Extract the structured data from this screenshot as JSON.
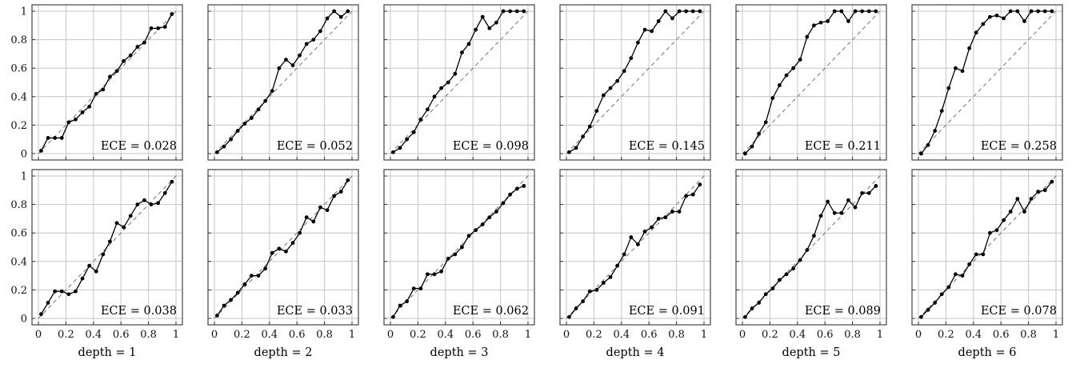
{
  "chart_data": {
    "type": "line",
    "axes": {
      "xlim": [
        0,
        1
      ],
      "ylim": [
        0,
        1
      ],
      "xticks": [
        "0",
        "0.2",
        "0.4",
        "0.6",
        "0.8",
        "1"
      ],
      "yticks": [
        "0",
        "0.2",
        "0.4",
        "0.6",
        "0.8",
        "1"
      ],
      "grid": true,
      "reference_line": "y = x (dashed)"
    },
    "columns": [
      {
        "label": "depth = 1"
      },
      {
        "label": "depth = 2"
      },
      {
        "label": "depth = 3"
      },
      {
        "label": "depth = 4"
      },
      {
        "label": "depth = 5"
      },
      {
        "label": "depth = 6"
      }
    ],
    "panels": [
      {
        "row": 0,
        "col": 0,
        "ece": "ECE = 0.028",
        "x": [
          0.02,
          0.07,
          0.12,
          0.17,
          0.22,
          0.27,
          0.32,
          0.37,
          0.42,
          0.47,
          0.52,
          0.57,
          0.62,
          0.67,
          0.72,
          0.77,
          0.82,
          0.87,
          0.92,
          0.97
        ],
        "y": [
          0.02,
          0.11,
          0.11,
          0.11,
          0.22,
          0.24,
          0.29,
          0.33,
          0.42,
          0.45,
          0.54,
          0.58,
          0.65,
          0.69,
          0.75,
          0.78,
          0.88,
          0.88,
          0.89,
          0.98
        ]
      },
      {
        "row": 0,
        "col": 1,
        "ece": "ECE = 0.052",
        "x": [
          0.02,
          0.07,
          0.12,
          0.17,
          0.22,
          0.27,
          0.32,
          0.37,
          0.42,
          0.47,
          0.52,
          0.57,
          0.62,
          0.67,
          0.72,
          0.77,
          0.82,
          0.87,
          0.92,
          0.97
        ],
        "y": [
          0.01,
          0.05,
          0.1,
          0.16,
          0.21,
          0.25,
          0.31,
          0.37,
          0.44,
          0.6,
          0.66,
          0.62,
          0.69,
          0.77,
          0.8,
          0.86,
          0.95,
          1.0,
          0.96,
          1.0
        ]
      },
      {
        "row": 0,
        "col": 2,
        "ece": "ECE = 0.098",
        "x": [
          0.02,
          0.07,
          0.12,
          0.17,
          0.22,
          0.27,
          0.32,
          0.37,
          0.42,
          0.47,
          0.52,
          0.57,
          0.62,
          0.67,
          0.72,
          0.77,
          0.82,
          0.87,
          0.92,
          0.97
        ],
        "y": [
          0.01,
          0.04,
          0.1,
          0.15,
          0.24,
          0.31,
          0.4,
          0.46,
          0.5,
          0.56,
          0.71,
          0.77,
          0.87,
          0.96,
          0.88,
          0.92,
          1.0,
          1.0,
          1.0,
          1.0
        ]
      },
      {
        "row": 0,
        "col": 3,
        "ece": "ECE = 0.145",
        "x": [
          0.02,
          0.07,
          0.12,
          0.17,
          0.22,
          0.27,
          0.32,
          0.37,
          0.42,
          0.47,
          0.52,
          0.57,
          0.62,
          0.67,
          0.72,
          0.77,
          0.82,
          0.87,
          0.92,
          0.97
        ],
        "y": [
          0.01,
          0.04,
          0.12,
          0.19,
          0.3,
          0.41,
          0.46,
          0.51,
          0.58,
          0.67,
          0.78,
          0.87,
          0.86,
          0.93,
          1.0,
          0.95,
          1.0,
          1.0,
          1.0,
          1.0
        ]
      },
      {
        "row": 0,
        "col": 4,
        "ece": "ECE = 0.211",
        "x": [
          0.02,
          0.07,
          0.12,
          0.17,
          0.22,
          0.27,
          0.32,
          0.37,
          0.42,
          0.47,
          0.52,
          0.57,
          0.62,
          0.67,
          0.72,
          0.77,
          0.82,
          0.87,
          0.92,
          0.97
        ],
        "y": [
          0.0,
          0.05,
          0.14,
          0.22,
          0.39,
          0.48,
          0.55,
          0.6,
          0.66,
          0.82,
          0.9,
          0.92,
          0.93,
          1.0,
          1.0,
          0.93,
          1.0,
          1.0,
          1.0,
          1.0
        ]
      },
      {
        "row": 0,
        "col": 5,
        "ece": "ECE = 0.258",
        "x": [
          0.02,
          0.07,
          0.12,
          0.17,
          0.22,
          0.27,
          0.32,
          0.37,
          0.42,
          0.47,
          0.52,
          0.57,
          0.62,
          0.67,
          0.72,
          0.77,
          0.82,
          0.87,
          0.92,
          0.97
        ],
        "y": [
          0.0,
          0.06,
          0.16,
          0.3,
          0.46,
          0.6,
          0.58,
          0.74,
          0.85,
          0.91,
          0.96,
          0.97,
          0.95,
          1.0,
          1.0,
          0.93,
          1.0,
          1.0,
          1.0,
          1.0
        ]
      },
      {
        "row": 1,
        "col": 0,
        "ece": "ECE = 0.038",
        "x": [
          0.02,
          0.07,
          0.12,
          0.17,
          0.22,
          0.27,
          0.32,
          0.37,
          0.42,
          0.47,
          0.52,
          0.57,
          0.62,
          0.67,
          0.72,
          0.77,
          0.82,
          0.87,
          0.92,
          0.97
        ],
        "y": [
          0.03,
          0.11,
          0.19,
          0.19,
          0.17,
          0.19,
          0.28,
          0.37,
          0.33,
          0.45,
          0.54,
          0.67,
          0.64,
          0.72,
          0.8,
          0.83,
          0.8,
          0.81,
          0.88,
          0.96
        ]
      },
      {
        "row": 1,
        "col": 1,
        "ece": "ECE = 0.033",
        "x": [
          0.02,
          0.07,
          0.12,
          0.17,
          0.22,
          0.27,
          0.32,
          0.37,
          0.42,
          0.47,
          0.52,
          0.57,
          0.62,
          0.67,
          0.72,
          0.77,
          0.82,
          0.87,
          0.92,
          0.97
        ],
        "y": [
          0.02,
          0.09,
          0.13,
          0.18,
          0.24,
          0.3,
          0.3,
          0.35,
          0.46,
          0.49,
          0.47,
          0.53,
          0.6,
          0.71,
          0.68,
          0.78,
          0.76,
          0.86,
          0.89,
          0.97
        ]
      },
      {
        "row": 1,
        "col": 2,
        "ece": "ECE = 0.062",
        "x": [
          0.02,
          0.07,
          0.12,
          0.17,
          0.22,
          0.27,
          0.32,
          0.37,
          0.42,
          0.47,
          0.52,
          0.57,
          0.62,
          0.67,
          0.72,
          0.77,
          0.82,
          0.87,
          0.92,
          0.97
        ],
        "y": [
          0.01,
          0.09,
          0.12,
          0.21,
          0.21,
          0.31,
          0.31,
          0.33,
          0.42,
          0.45,
          0.5,
          0.58,
          0.62,
          0.66,
          0.71,
          0.75,
          0.81,
          0.87,
          0.91,
          0.93
        ]
      },
      {
        "row": 1,
        "col": 3,
        "ece": "ECE = 0.091",
        "x": [
          0.02,
          0.07,
          0.12,
          0.17,
          0.22,
          0.27,
          0.32,
          0.37,
          0.42,
          0.47,
          0.52,
          0.57,
          0.62,
          0.67,
          0.72,
          0.77,
          0.82,
          0.87,
          0.92,
          0.97
        ],
        "y": [
          0.01,
          0.07,
          0.12,
          0.19,
          0.2,
          0.25,
          0.29,
          0.37,
          0.45,
          0.57,
          0.52,
          0.61,
          0.64,
          0.7,
          0.71,
          0.75,
          0.75,
          0.86,
          0.87,
          0.94
        ]
      },
      {
        "row": 1,
        "col": 4,
        "ece": "ECE = 0.089",
        "x": [
          0.02,
          0.07,
          0.12,
          0.17,
          0.22,
          0.27,
          0.32,
          0.37,
          0.42,
          0.47,
          0.52,
          0.57,
          0.62,
          0.67,
          0.72,
          0.77,
          0.82,
          0.87,
          0.92,
          0.97
        ],
        "y": [
          0.01,
          0.07,
          0.11,
          0.17,
          0.21,
          0.27,
          0.31,
          0.35,
          0.41,
          0.48,
          0.58,
          0.72,
          0.82,
          0.74,
          0.74,
          0.83,
          0.78,
          0.88,
          0.88,
          0.93
        ]
      },
      {
        "row": 1,
        "col": 5,
        "ece": "ECE = 0.078",
        "x": [
          0.02,
          0.07,
          0.12,
          0.17,
          0.22,
          0.27,
          0.32,
          0.37,
          0.42,
          0.47,
          0.52,
          0.57,
          0.62,
          0.67,
          0.72,
          0.77,
          0.82,
          0.87,
          0.92,
          0.97
        ],
        "y": [
          0.01,
          0.06,
          0.11,
          0.17,
          0.22,
          0.31,
          0.3,
          0.38,
          0.45,
          0.45,
          0.6,
          0.62,
          0.69,
          0.75,
          0.84,
          0.75,
          0.84,
          0.89,
          0.9,
          0.96
        ]
      }
    ]
  }
}
